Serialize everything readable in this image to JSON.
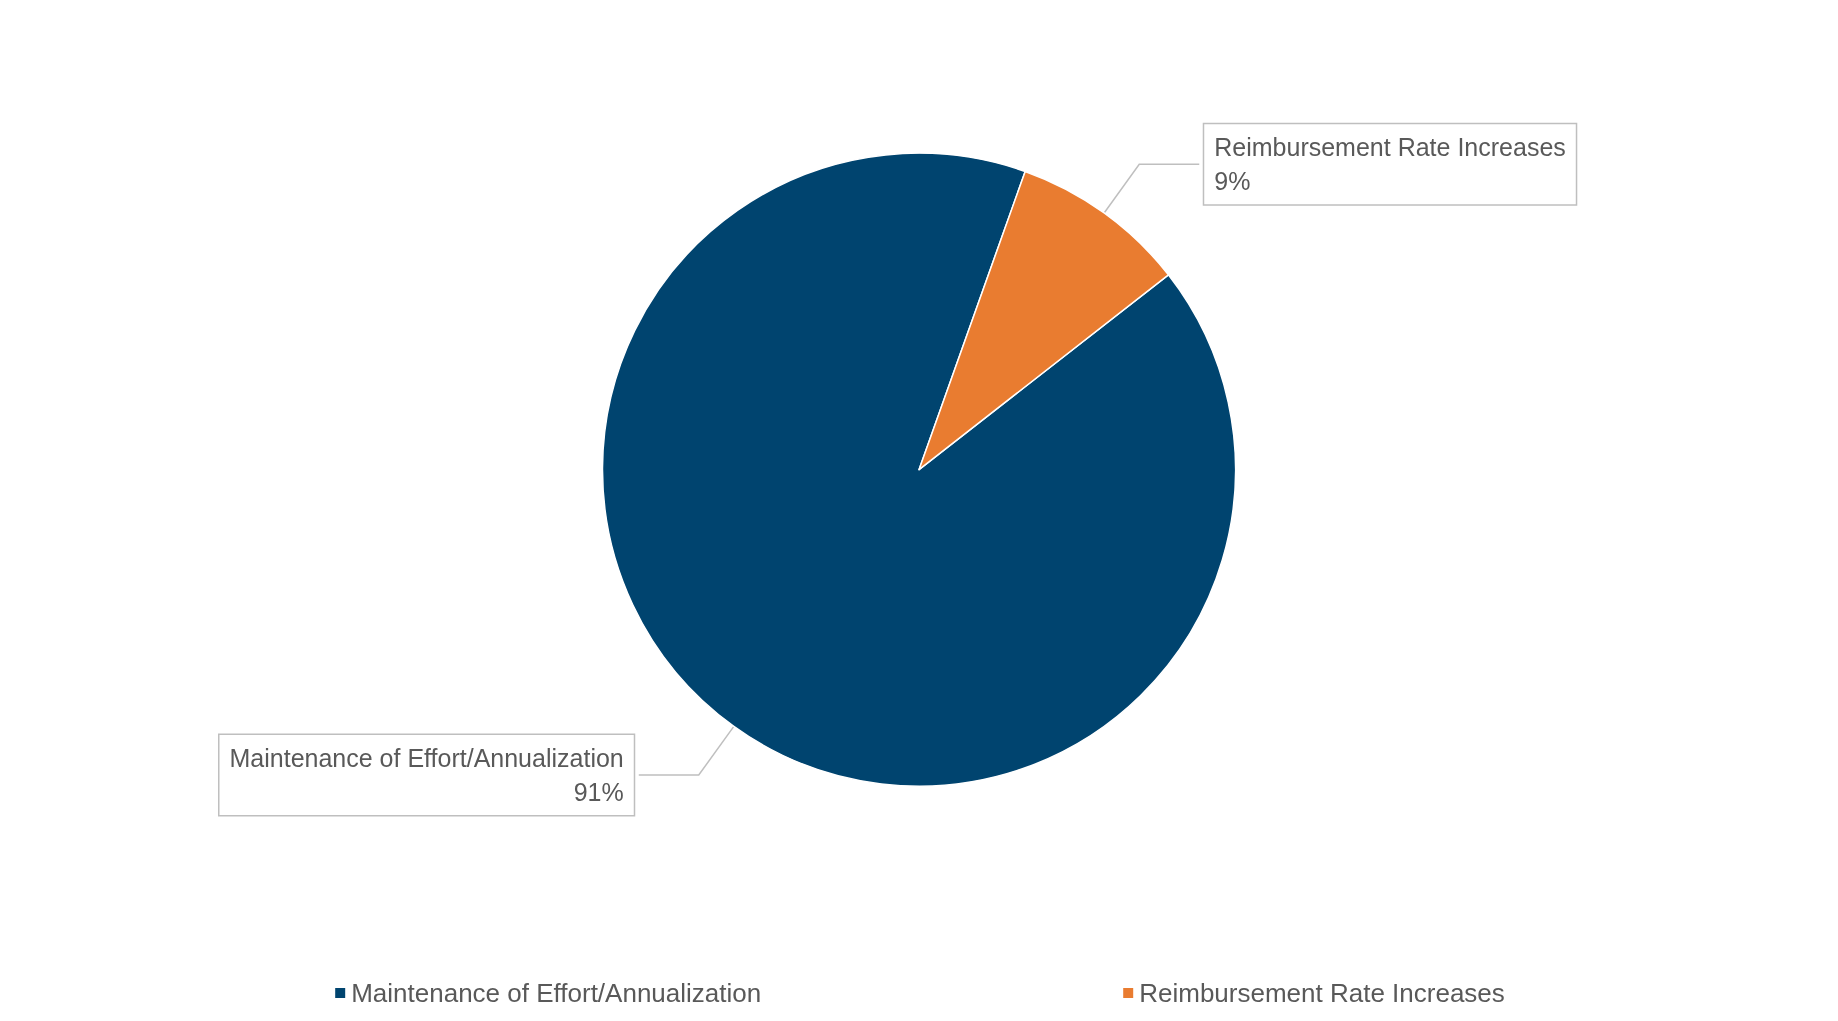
{
  "chart_data": {
    "type": "pie",
    "categories": [
      "Maintenance of Effort/Annualization",
      "Reimbursement Rate Increases"
    ],
    "values": [
      91,
      9
    ],
    "colors": [
      "#00446f",
      "#e97c30"
    ],
    "value_labels": [
      "91%",
      "9%"
    ],
    "legend": "bottom"
  }
}
